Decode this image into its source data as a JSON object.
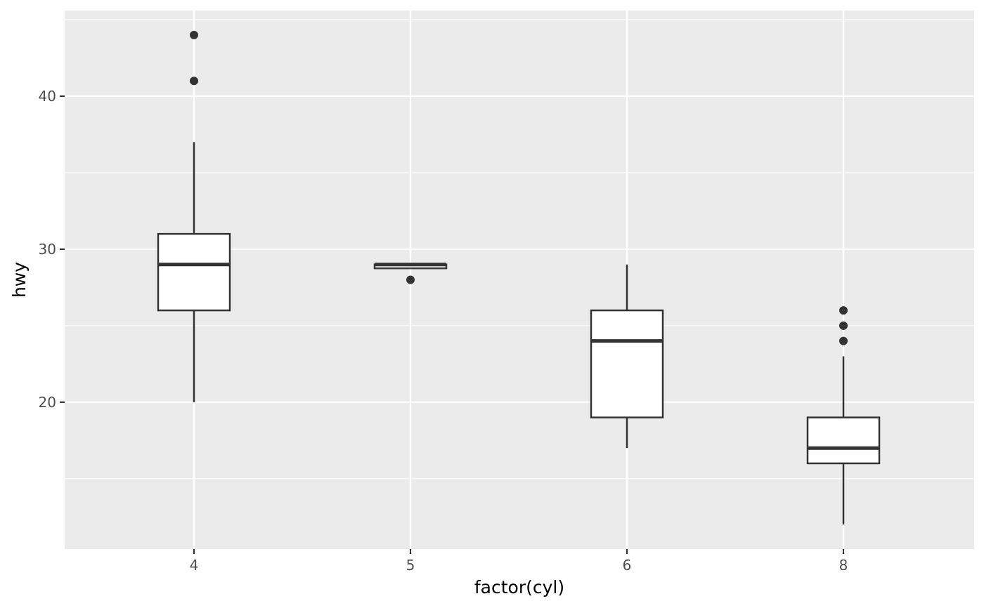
{
  "chart_data": {
    "type": "boxplot",
    "xlabel": "factor(cyl)",
    "ylabel": "hwy",
    "categories": [
      "4",
      "5",
      "6",
      "8"
    ],
    "ylim": [
      10.4,
      45.6
    ],
    "y_major_ticks": [
      20,
      30,
      40
    ],
    "y_minor_ticks": [
      15,
      25,
      35,
      45
    ],
    "y_tick_labels": [
      "20",
      "30",
      "40"
    ],
    "grid": true,
    "legend": "none",
    "series": [
      {
        "category": "4",
        "whisker_low": 20,
        "q1": 26,
        "median": 29,
        "q3": 31,
        "whisker_high": 37,
        "outliers": [
          41,
          44
        ]
      },
      {
        "category": "5",
        "whisker_low": 28.75,
        "q1": 28.75,
        "median": 29,
        "q3": 29,
        "whisker_high": 29,
        "outliers": [
          28
        ]
      },
      {
        "category": "6",
        "whisker_low": 17,
        "q1": 19,
        "median": 24,
        "q3": 26,
        "whisker_high": 29,
        "outliers": []
      },
      {
        "category": "8",
        "whisker_low": 12,
        "q1": 16,
        "median": 17,
        "q3": 19,
        "whisker_high": 23,
        "outliers": [
          24,
          25,
          26
        ]
      }
    ],
    "colors": {
      "panel_background": "#ebebeb",
      "grid": "#ffffff",
      "box_fill": "#ffffff",
      "box_stroke": "#333333",
      "tick_text": "#4d4d4d",
      "axis_title": "#000000"
    }
  }
}
